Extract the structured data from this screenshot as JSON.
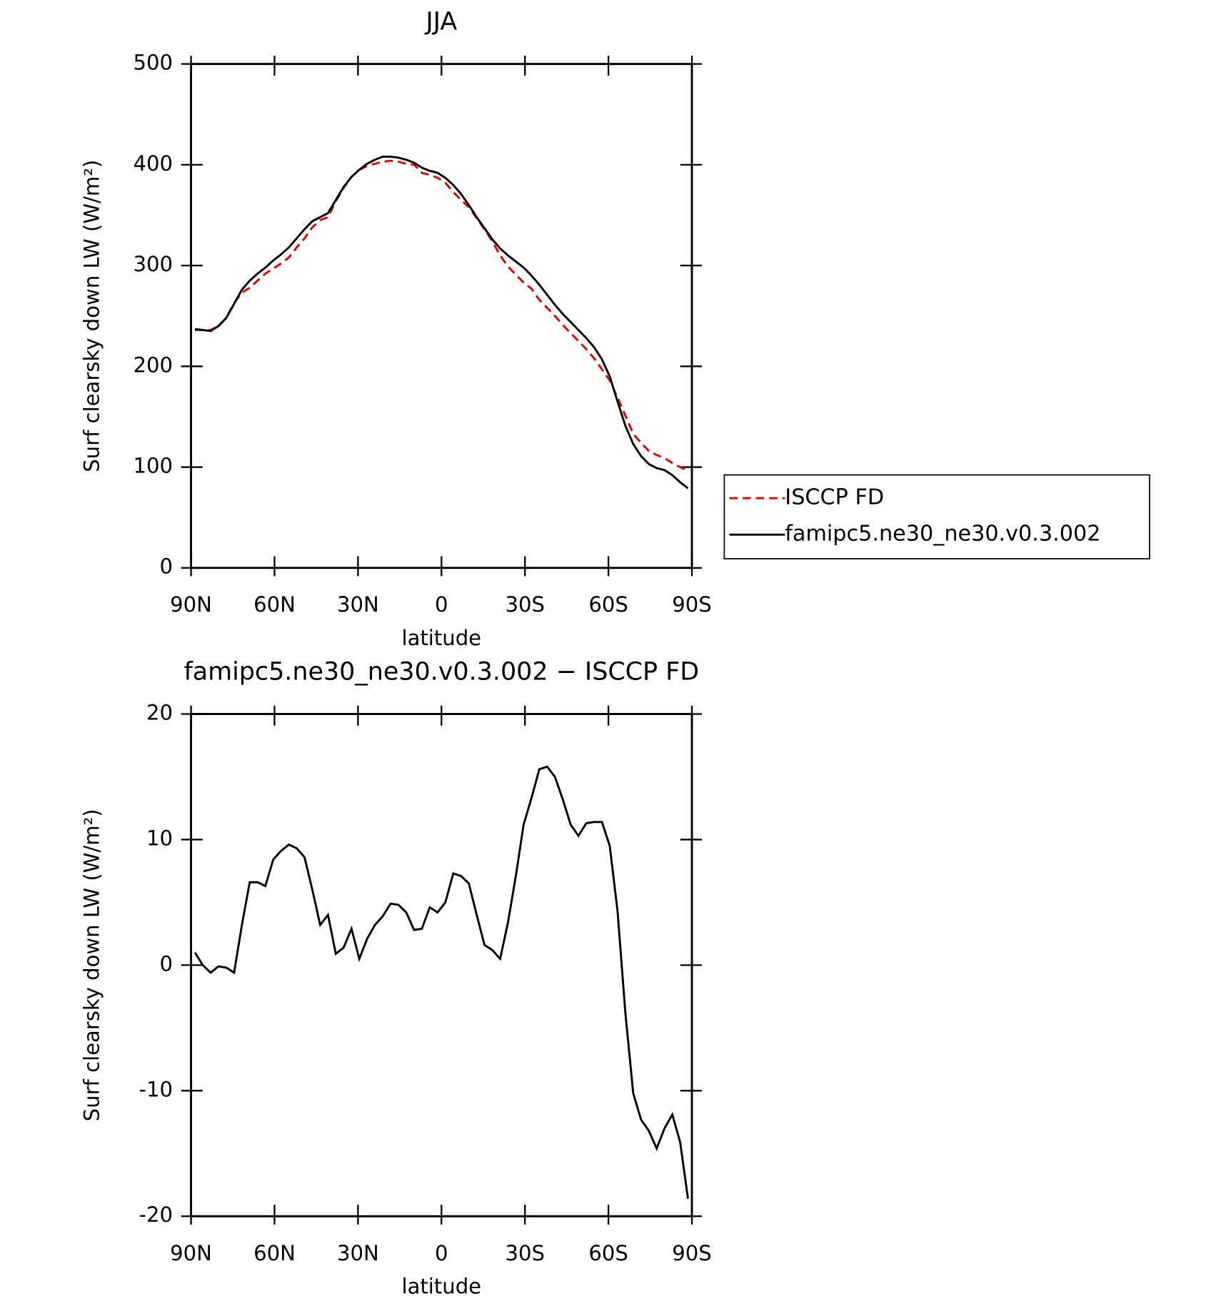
{
  "chart_data": [
    {
      "type": "line",
      "title": "JJA",
      "xlabel": "latitude",
      "ylabel": "Surf clearsky down LW (W/m²)",
      "x": [
        88.59,
        85.78,
        82.97,
        80.16,
        77.34,
        74.53,
        71.72,
        68.91,
        66.09,
        63.28,
        60.47,
        57.66,
        54.84,
        52.03,
        49.22,
        46.41,
        43.59,
        40.78,
        37.97,
        35.16,
        32.34,
        29.53,
        26.72,
        23.91,
        21.09,
        18.28,
        15.47,
        12.66,
        9.84,
        7.03,
        4.22,
        1.41,
        -1.41,
        -4.22,
        -7.03,
        -9.84,
        -12.66,
        -15.47,
        -18.28,
        -21.09,
        -23.91,
        -26.72,
        -29.53,
        -32.34,
        -35.16,
        -37.97,
        -40.78,
        -43.59,
        -46.41,
        -49.22,
        -52.03,
        -54.84,
        -57.66,
        -60.47,
        -63.28,
        -66.09,
        -68.91,
        -71.72,
        -74.53,
        -77.34,
        -80.16,
        -82.97,
        -85.78,
        -88.59
      ],
      "series": [
        {
          "name": "ISCCP FD",
          "color": "#e00000",
          "dash": true,
          "values": [
            236,
            236,
            236,
            240,
            248,
            263,
            273,
            278,
            285,
            292,
            297,
            302,
            308,
            318,
            327,
            338,
            345,
            348,
            364,
            377,
            388,
            395,
            399,
            401,
            403,
            404,
            403,
            401,
            400,
            392,
            390,
            387,
            382,
            373,
            365,
            358,
            347,
            336,
            324,
            310,
            299,
            291,
            283,
            277,
            266,
            258,
            250,
            241,
            233,
            225,
            217,
            208,
            197,
            186,
            169,
            151,
            133,
            124,
            116,
            112,
            109,
            104,
            100,
            96
          ]
        },
        {
          "name": "famipc5.ne30_ne30.v0.3.002",
          "color": "#000000",
          "dash": false,
          "values": [
            237,
            236,
            235,
            240,
            248,
            262,
            276,
            285,
            292,
            298,
            305,
            311,
            318,
            327,
            336,
            344,
            348,
            352,
            365,
            378,
            388,
            395,
            401,
            405,
            408,
            408,
            407,
            405,
            402,
            397,
            394,
            392,
            387,
            380,
            371,
            360,
            348,
            337,
            326,
            317,
            310,
            304,
            298,
            290,
            281,
            271,
            261,
            252,
            244,
            236,
            228,
            219,
            207,
            190,
            165,
            141,
            123,
            111,
            103,
            99,
            97,
            92,
            85,
            79
          ]
        }
      ],
      "xlim": [
        90,
        -90
      ],
      "xticks": [
        {
          "value": 90,
          "label": "90N"
        },
        {
          "value": 60,
          "label": "60N"
        },
        {
          "value": 30,
          "label": "30N"
        },
        0,
        {
          "value": -30,
          "label": "30S"
        },
        {
          "value": -60,
          "label": "60S"
        },
        {
          "value": -90,
          "label": "90S"
        }
      ],
      "ylim": [
        0,
        500
      ],
      "yticks": [
        0,
        100,
        200,
        300,
        400,
        500
      ],
      "legend": "outside-right"
    },
    {
      "type": "line",
      "title": "famipc5.ne30_ne30.v0.3.002 − ISCCP FD",
      "xlabel": "latitude",
      "ylabel": "Surf clearsky down LW (W/m²)",
      "x": [
        88.59,
        85.78,
        82.97,
        80.16,
        77.34,
        74.53,
        71.72,
        68.91,
        66.09,
        63.28,
        60.47,
        57.66,
        54.84,
        52.03,
        49.22,
        46.41,
        43.59,
        40.78,
        37.97,
        35.16,
        32.34,
        29.53,
        26.72,
        23.91,
        21.09,
        18.28,
        15.47,
        12.66,
        9.84,
        7.03,
        4.22,
        1.41,
        -1.41,
        -4.22,
        -7.03,
        -9.84,
        -12.66,
        -15.47,
        -18.28,
        -21.09,
        -23.91,
        -26.72,
        -29.53,
        -32.34,
        -35.16,
        -37.97,
        -40.78,
        -43.59,
        -46.41,
        -49.22,
        -52.03,
        -54.84,
        -57.66,
        -60.47,
        -63.28,
        -66.09,
        -68.91,
        -71.72,
        -74.53,
        -77.34,
        -80.16,
        -82.97,
        -85.78,
        -88.59
      ],
      "series": [
        {
          "color": "#000000",
          "dash": false,
          "values": [
            1.0,
            0,
            -0.6,
            -0.1,
            -0.2,
            -0.6,
            3.2,
            6.6,
            6.6,
            6.3,
            8.4,
            9.1,
            9.6,
            9.3,
            8.6,
            6.0,
            3.2,
            4.0,
            0.9,
            1.4,
            2.9,
            0.5,
            2.1,
            3.2,
            3.9,
            4.9,
            4.8,
            4.2,
            2.8,
            2.9,
            4.6,
            4.2,
            5.0,
            7.3,
            7.1,
            6.5,
            4.0,
            1.6,
            1.2,
            0.5,
            3.4,
            7.1,
            11.2,
            13.3,
            15.6,
            15.8,
            15.0,
            13.2,
            11.2,
            10.3,
            11.3,
            11.4,
            11.4,
            9.5,
            4.3,
            -3.8,
            -10.2,
            -12.3,
            -13.2,
            -14.6,
            -13.0,
            -11.9,
            -14.1,
            -18.6
          ]
        }
      ],
      "xlim": [
        90,
        -90
      ],
      "xticks": [
        {
          "value": 90,
          "label": "90N"
        },
        {
          "value": 60,
          "label": "60N"
        },
        {
          "value": 30,
          "label": "30N"
        },
        0,
        {
          "value": -30,
          "label": "30S"
        },
        {
          "value": -60,
          "label": "60S"
        },
        {
          "value": -90,
          "label": "90S"
        }
      ],
      "ylim": [
        -20,
        20
      ],
      "yticks": [
        -20,
        -10,
        0,
        10,
        20
      ]
    }
  ]
}
